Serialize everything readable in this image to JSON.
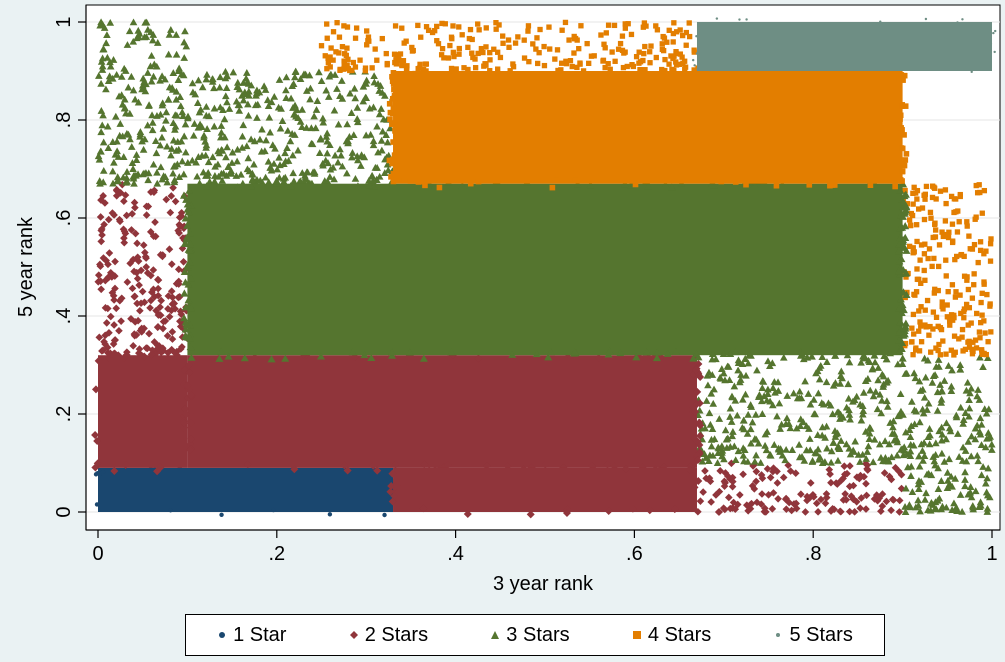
{
  "chart_data": {
    "type": "scatter",
    "title": "",
    "xlabel": "3 year rank",
    "ylabel": "5 year rank",
    "xlim": [
      0,
      1
    ],
    "ylim": [
      0,
      1
    ],
    "x_ticks": [
      0,
      0.2,
      0.4,
      0.6,
      0.8,
      1
    ],
    "x_tick_labels": [
      "0",
      ".2",
      ".4",
      ".6",
      ".8",
      "1"
    ],
    "y_ticks": [
      0,
      0.2,
      0.4,
      0.6,
      0.8,
      1
    ],
    "y_tick_labels": [
      "0",
      ".2",
      ".4",
      ".6",
      ".8",
      "1"
    ],
    "grid": "horizontal",
    "legend_position": "bottom",
    "series": [
      {
        "name": "1 Star",
        "color": "#1a476f",
        "marker": "circle",
        "core_regions": [
          [
            0.0,
            0.0,
            0.33,
            0.09
          ]
        ],
        "scatter_regions": []
      },
      {
        "name": "2 Stars",
        "color": "#90353b",
        "marker": "diamond",
        "core_regions": [
          [
            0.0,
            0.09,
            0.1,
            0.32
          ],
          [
            0.1,
            0.09,
            0.67,
            0.32
          ],
          [
            0.33,
            0.0,
            0.67,
            0.09
          ]
        ],
        "scatter_regions": [
          [
            0.0,
            0.32,
            0.1,
            0.67
          ],
          [
            0.67,
            0.0,
            0.9,
            0.1
          ]
        ]
      },
      {
        "name": "3 Stars",
        "color": "#55752f",
        "marker": "triangle",
        "core_regions": [
          [
            0.1,
            0.32,
            0.9,
            0.67
          ]
        ],
        "scatter_regions": [
          [
            0.1,
            0.67,
            0.33,
            0.9
          ],
          [
            0.67,
            0.1,
            0.9,
            0.32
          ],
          [
            0.9,
            0.0,
            1.0,
            0.32
          ],
          [
            0.0,
            0.67,
            0.1,
            1.0
          ]
        ]
      },
      {
        "name": "4 Stars",
        "color": "#e37e00",
        "marker": "square",
        "core_regions": [
          [
            0.33,
            0.67,
            0.9,
            0.9
          ]
        ],
        "scatter_regions": [
          [
            0.33,
            0.9,
            0.67,
            1.0
          ],
          [
            0.9,
            0.32,
            1.0,
            0.67
          ],
          [
            0.25,
            0.9,
            0.33,
            1.0
          ]
        ]
      },
      {
        "name": "5 Stars",
        "color": "#6e8e84",
        "marker": "circle",
        "core_regions": [
          [
            0.67,
            0.9,
            1.0,
            1.0
          ]
        ],
        "scatter_regions": []
      }
    ]
  },
  "legend": {
    "items": [
      "1 Star",
      "2 Stars",
      "3 Stars",
      "4 Stars",
      "5 Stars"
    ]
  }
}
